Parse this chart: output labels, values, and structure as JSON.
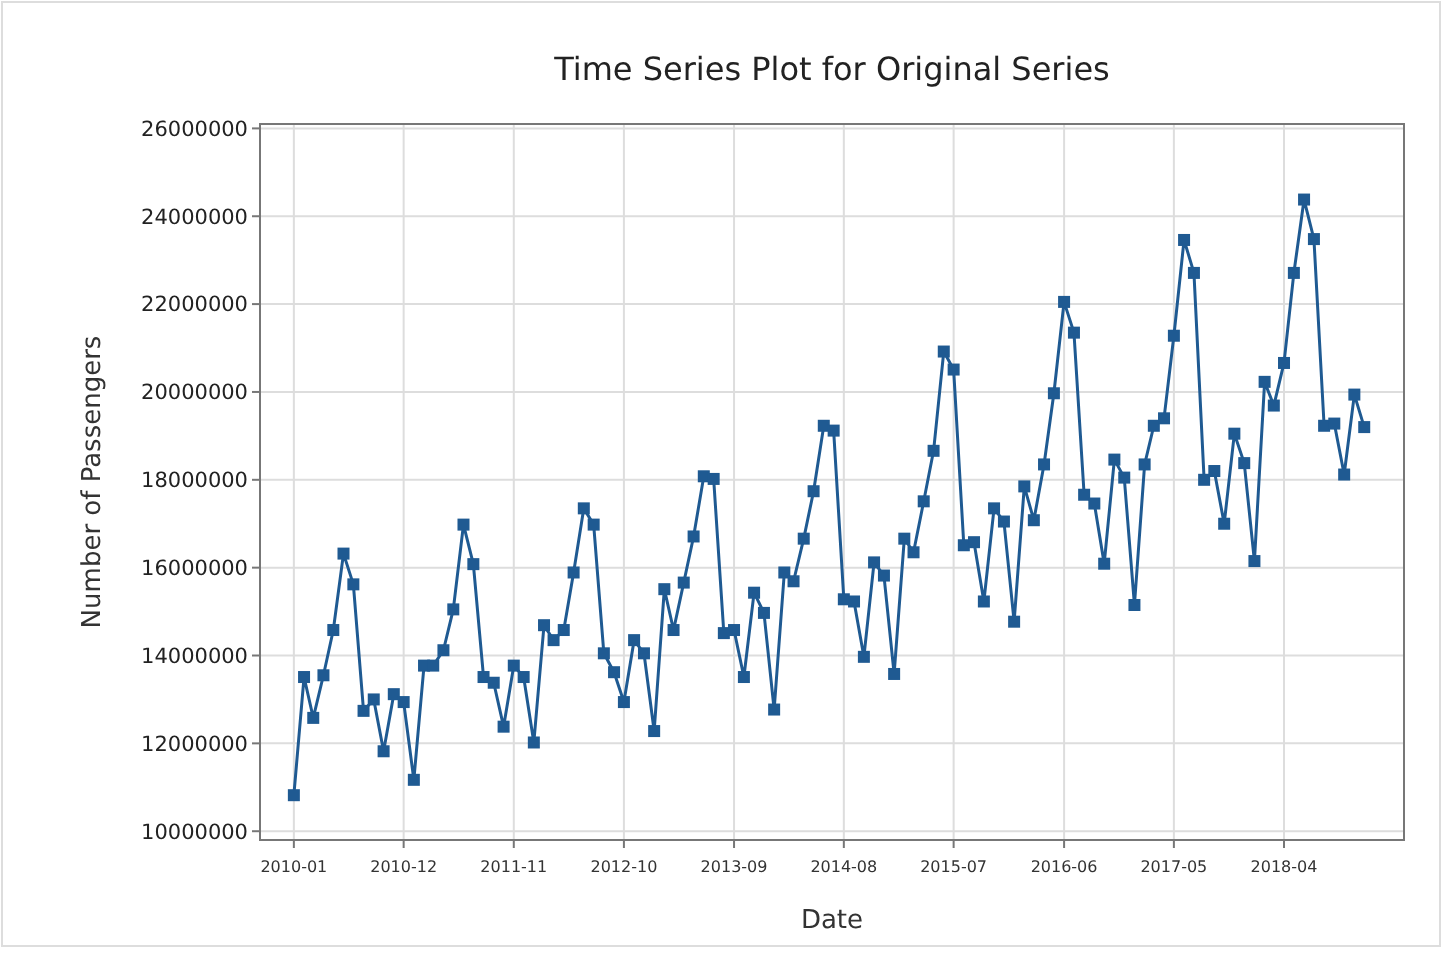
{
  "chart_data": {
    "type": "line",
    "title": "Time Series Plot for Original Series",
    "xlabel": "Date",
    "ylabel": "Number of Passengers",
    "x": [
      "2010-01",
      "2010-02",
      "2010-03",
      "2010-04",
      "2010-05",
      "2010-06",
      "2010-07",
      "2010-08",
      "2010-09",
      "2010-10",
      "2010-11",
      "2010-12",
      "2011-01",
      "2011-02",
      "2011-03",
      "2011-04",
      "2011-05",
      "2011-06",
      "2011-07",
      "2011-08",
      "2011-09",
      "2011-10",
      "2011-11",
      "2011-12",
      "2012-01",
      "2012-02",
      "2012-03",
      "2012-04",
      "2012-05",
      "2012-06",
      "2012-07",
      "2012-08",
      "2012-09",
      "2012-10",
      "2012-11",
      "2012-12",
      "2013-01",
      "2013-02",
      "2013-03",
      "2013-04",
      "2013-05",
      "2013-06",
      "2013-07",
      "2013-08",
      "2013-09",
      "2013-10",
      "2013-11",
      "2013-12",
      "2014-01",
      "2014-02",
      "2014-03",
      "2014-04",
      "2014-05",
      "2014-06",
      "2014-07",
      "2014-08",
      "2014-09",
      "2014-10",
      "2014-11",
      "2014-12",
      "2015-01",
      "2015-02",
      "2015-03",
      "2015-04",
      "2015-05",
      "2015-06",
      "2015-07",
      "2015-08",
      "2015-09",
      "2015-10",
      "2015-11",
      "2015-12",
      "2016-01",
      "2016-02",
      "2016-03",
      "2016-04",
      "2016-05",
      "2016-06",
      "2016-07",
      "2016-08",
      "2016-09",
      "2016-10",
      "2016-11",
      "2016-12",
      "2017-01",
      "2017-02",
      "2017-03",
      "2017-04",
      "2017-05",
      "2017-06",
      "2017-07",
      "2017-08",
      "2017-09",
      "2017-10",
      "2017-11",
      "2017-12",
      "2018-01",
      "2018-02",
      "2018-03",
      "2018-04",
      "2018-05",
      "2018-06",
      "2018-07",
      "2018-08",
      "2018-09",
      "2018-10",
      "2018-11",
      "2018-12"
    ],
    "series": [
      {
        "color": "#1f5a92",
        "values": [
          10820000,
          13510000,
          12580000,
          13550000,
          14580000,
          16320000,
          15620000,
          12740000,
          13000000,
          11820000,
          13120000,
          12940000,
          11170000,
          13770000,
          13770000,
          14120000,
          15050000,
          16980000,
          16080000,
          13510000,
          13380000,
          12380000,
          13770000,
          13510000,
          12020000,
          14690000,
          14350000,
          14580000,
          15890000,
          17350000,
          16980000,
          14050000,
          13620000,
          12940000,
          14350000,
          14050000,
          12280000,
          15510000,
          14580000,
          15660000,
          16710000,
          18080000,
          18020000,
          14510000,
          14580000,
          13510000,
          15430000,
          14970000,
          12770000,
          15890000,
          15690000,
          16660000,
          17740000,
          19230000,
          19120000,
          15280000,
          15230000,
          13970000,
          16120000,
          15820000,
          13580000,
          16660000,
          16350000,
          17510000,
          18660000,
          20920000,
          20510000,
          16510000,
          16580000,
          15230000,
          17350000,
          17050000,
          14770000,
          17850000,
          17080000,
          18350000,
          19970000,
          22050000,
          21350000,
          17660000,
          17460000,
          16090000,
          18460000,
          18050000,
          15150000,
          18350000,
          19230000,
          19400000,
          21280000,
          23460000,
          22710000,
          18000000,
          18200000,
          17000000,
          19050000,
          18380000,
          16150000,
          20230000,
          19690000,
          20660000,
          22710000,
          24380000,
          23480000,
          19230000,
          19280000,
          18120000,
          19940000,
          19200000
        ]
      }
    ],
    "xlim": [
      "2009-09-20",
      "2019-04-01"
    ],
    "xticks": [
      {
        "value": "2010-01",
        "label": "2010-01"
      },
      {
        "value": "2010-12",
        "label": "2010-12"
      },
      {
        "value": "2011-11",
        "label": "2011-11"
      },
      {
        "value": "2012-10",
        "label": "2012-10"
      },
      {
        "value": "2013-09",
        "label": "2013-09"
      },
      {
        "value": "2014-08",
        "label": "2014-08"
      },
      {
        "value": "2015-07",
        "label": "2015-07"
      },
      {
        "value": "2016-06",
        "label": "2016-06"
      },
      {
        "value": "2017-05",
        "label": "2017-05"
      },
      {
        "value": "2018-04",
        "label": "2018-04"
      }
    ],
    "ylim": [
      9800000,
      26100000
    ],
    "yticks": [
      10000000,
      12000000,
      14000000,
      16000000,
      18000000,
      20000000,
      22000000,
      24000000,
      26000000
    ],
    "grid": true,
    "marker": "square",
    "line_style": "solid"
  }
}
